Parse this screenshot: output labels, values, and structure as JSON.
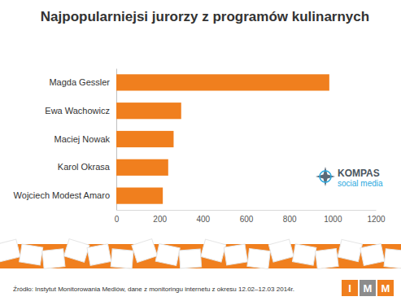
{
  "chart_data": {
    "type": "bar",
    "orientation": "horizontal",
    "title": "Najpopularniejsi jurorzy z programów kulinarnych",
    "categories": [
      "Magda Gessler",
      "Ewa Wachowicz",
      "Maciej Nowak",
      "Karol Okrasa",
      "Wojciech Modest Amaro"
    ],
    "values": [
      985,
      300,
      265,
      240,
      215
    ],
    "color": "#f07f1e",
    "xlim": [
      0,
      1200
    ],
    "xticks": [
      0,
      200,
      400,
      600,
      800,
      1000,
      1200
    ],
    "grid": false,
    "source": "Źródło: Instytut Monitorowania Mediów, dane z monitoringu internetu z okresu 12.02–12.03 2014r.",
    "logos": [
      [
        "KOMPAS",
        "social media"
      ],
      [
        "I",
        "M",
        "M"
      ]
    ]
  }
}
